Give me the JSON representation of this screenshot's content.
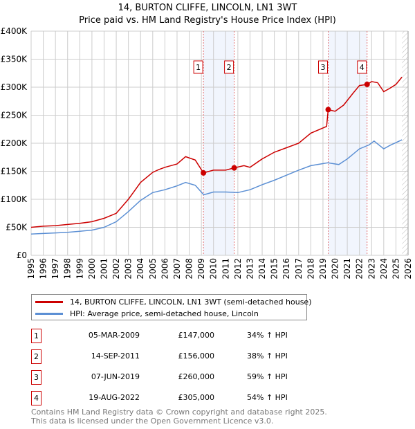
{
  "chart_data": {
    "type": "line",
    "title": "14, BURTON CLIFFE, LINCOLN, LN1 3WT",
    "subtitle": "Price paid vs. HM Land Registry's House Price Index (HPI)",
    "xlim": [
      1995,
      2026
    ],
    "ylim": [
      0,
      400000
    ],
    "x_ticks": [
      "1995",
      "1996",
      "1997",
      "1998",
      "1999",
      "2000",
      "2001",
      "2002",
      "2003",
      "2004",
      "2005",
      "2006",
      "2007",
      "2008",
      "2009",
      "2010",
      "2011",
      "2012",
      "2013",
      "2014",
      "2015",
      "2016",
      "2017",
      "2018",
      "2019",
      "2020",
      "2021",
      "2022",
      "2023",
      "2024",
      "2025",
      "2026"
    ],
    "y_ticks": [
      {
        "v": 0,
        "label": "£0"
      },
      {
        "v": 50000,
        "label": "£50K"
      },
      {
        "v": 100000,
        "label": "£100K"
      },
      {
        "v": 150000,
        "label": "£150K"
      },
      {
        "v": 200000,
        "label": "£200K"
      },
      {
        "v": 250000,
        "label": "£250K"
      },
      {
        "v": 300000,
        "label": "£300K"
      },
      {
        "v": 350000,
        "label": "£350K"
      },
      {
        "v": 400000,
        "label": "£400K"
      }
    ],
    "grid": true,
    "forecast_hatch_from": 2025.5,
    "shaded_ranges": [
      [
        2009.17,
        2011.7
      ],
      [
        2019.43,
        2022.63
      ]
    ],
    "series": [
      {
        "name": "14, BURTON CLIFFE, LINCOLN, LN1 3WT (semi-detached house)",
        "color": "#cc0000",
        "x": [
          1995,
          1996,
          1997,
          1998,
          1999,
          2000,
          2001,
          2002,
          2003,
          2003.5,
          2004,
          2005,
          2005.5,
          2006,
          2007,
          2007.7,
          2008.5,
          2009.17,
          2010,
          2011,
          2011.7,
          2012.5,
          2013,
          2014,
          2015,
          2016,
          2017,
          2018,
          2019.3,
          2019.43,
          2020,
          2020.7,
          2021.5,
          2022,
          2022.63,
          2023,
          2023.5,
          2024,
          2024.5,
          2025,
          2025.5
        ],
        "y": [
          50000,
          52000,
          53000,
          55000,
          57000,
          60000,
          66000,
          75000,
          100000,
          115000,
          130000,
          148000,
          153000,
          157000,
          163000,
          176000,
          170000,
          147000,
          152000,
          152000,
          156000,
          160000,
          157000,
          172000,
          184000,
          192000,
          200000,
          218000,
          230000,
          260000,
          257000,
          268000,
          290000,
          303000,
          305000,
          310000,
          308000,
          292000,
          298000,
          305000,
          318000
        ]
      },
      {
        "name": "HPI: Average price, semi-detached house, Lincoln",
        "color": "#5b8fd4",
        "x": [
          1995,
          1996,
          1997,
          1998,
          1999,
          2000,
          2001,
          2002,
          2003,
          2004,
          2005,
          2006,
          2007,
          2007.7,
          2008.5,
          2009.2,
          2010,
          2011,
          2012,
          2013,
          2014,
          2015,
          2016,
          2017,
          2018,
          2019.4,
          2020.3,
          2021,
          2022,
          2022.8,
          2023.2,
          2024,
          2024.5,
          2025.5
        ],
        "y": [
          38000,
          39000,
          40000,
          41000,
          43000,
          45000,
          50000,
          60000,
          78000,
          98000,
          112000,
          117000,
          124000,
          130000,
          125000,
          108000,
          113000,
          113000,
          112000,
          117000,
          126000,
          134000,
          143000,
          152000,
          160000,
          165000,
          162000,
          172000,
          190000,
          197000,
          204000,
          190000,
          196000,
          206000
        ]
      }
    ],
    "sales": [
      {
        "label": "1",
        "x": 2009.17,
        "y": 147000
      },
      {
        "label": "2",
        "x": 2011.7,
        "y": 156000
      },
      {
        "label": "3",
        "x": 2019.43,
        "y": 260000
      },
      {
        "label": "4",
        "x": 2022.63,
        "y": 305000
      }
    ]
  },
  "legend": {
    "property": "14, BURTON CLIFFE, LINCOLN, LN1 3WT (semi-detached house)",
    "hpi": "HPI: Average price, semi-detached house, Lincoln"
  },
  "transactions": [
    {
      "num": "1",
      "date": "05-MAR-2009",
      "price": "£147,000",
      "hpi": "34% ↑ HPI"
    },
    {
      "num": "2",
      "date": "14-SEP-2011",
      "price": "£156,000",
      "hpi": "38% ↑ HPI"
    },
    {
      "num": "3",
      "date": "07-JUN-2019",
      "price": "£260,000",
      "hpi": "59% ↑ HPI"
    },
    {
      "num": "4",
      "date": "19-AUG-2022",
      "price": "£305,000",
      "hpi": "54% ↑ HPI"
    }
  ],
  "footer": {
    "line1": "Contains HM Land Registry data © Crown copyright and database right 2025.",
    "line2": "This data is licensed under the Open Government Licence v3.0."
  }
}
